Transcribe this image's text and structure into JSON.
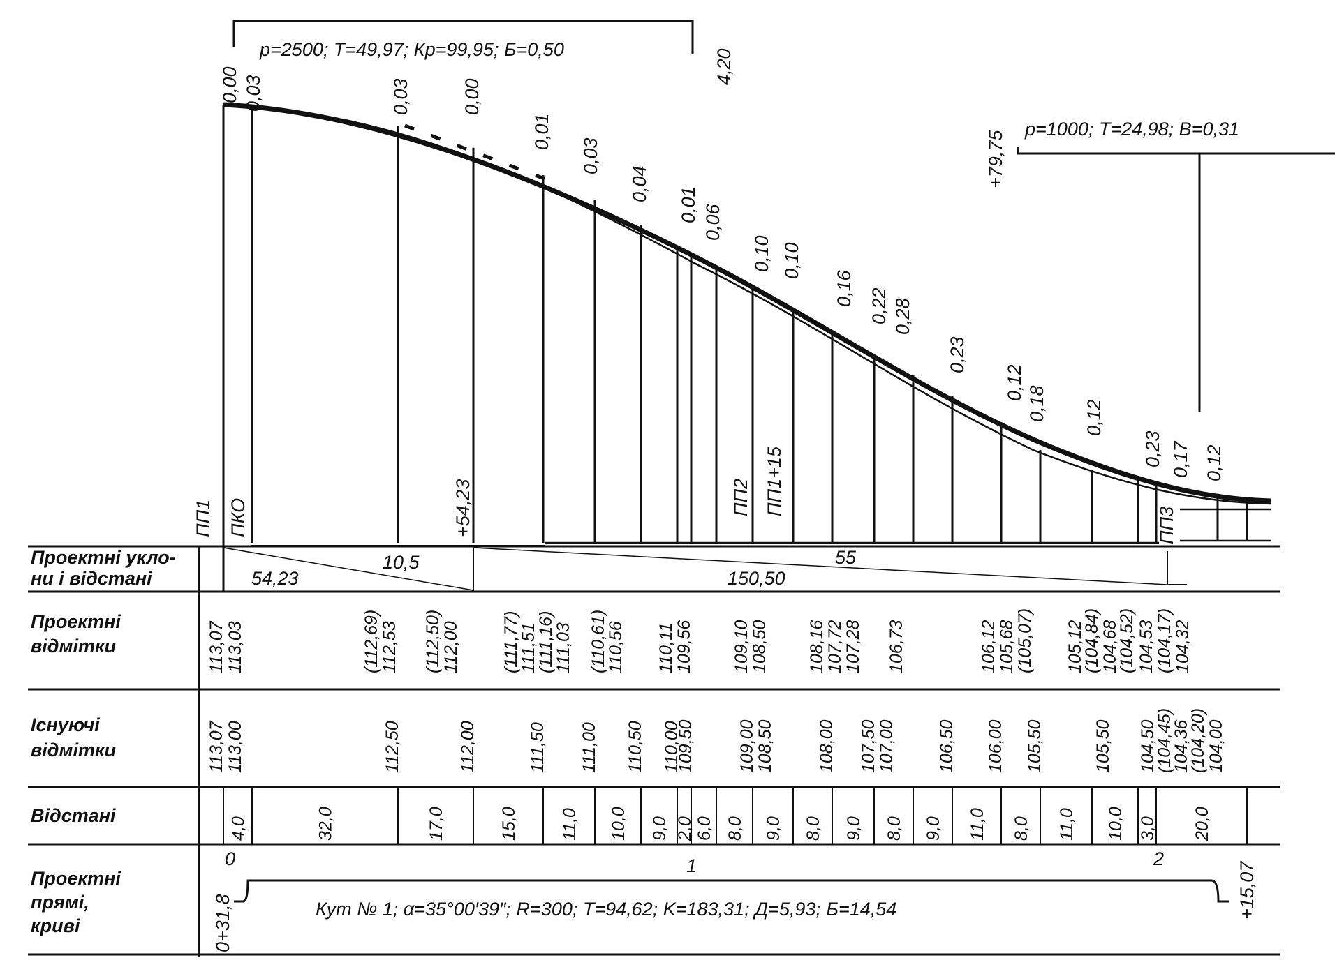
{
  "diagram": {
    "vertical_curve_1": {
      "label": "p=2500; T=49,97; Кр=99,95; Б=0,50",
      "end_mark": "4,20"
    },
    "vertical_curve_2": {
      "label": "p=1000; T=24,98; B=0,31",
      "mark": "+79,75"
    },
    "top_annotations": [
      "0,00",
      "0,03",
      "0,03",
      "0,00",
      "0,01",
      "0,03",
      "0,04",
      "0,01",
      "0,06",
      "0,10",
      "0,10",
      "0,16",
      "0,22",
      "0,28",
      "0,23",
      "0,12",
      "0,18",
      "0,12",
      "0,23",
      "0,17",
      "0,12"
    ],
    "point_labels": {
      "pp1": "ПП1",
      "pko": "ПКО",
      "plus_5423": "+54,23",
      "pp2": "ПП2",
      "pp1_15": "ПП1+15",
      "pp3": "ПП3"
    }
  },
  "rows": {
    "grades": {
      "header": [
        "Проектні укло-",
        "ни і відстані"
      ],
      "segments": [
        "54,23",
        "10,5",
        "150,50",
        "55"
      ]
    },
    "design_elev": {
      "header": [
        "Проектні",
        "відмітки"
      ],
      "values": [
        "113,07",
        "113,03",
        "(112,69)",
        "112,53",
        "(112,50)",
        "112,00",
        "(111,77)",
        "111,51",
        "(111,16)",
        "111,03",
        "(110,61)",
        "110,56",
        "110,11",
        "109,56",
        "109,10",
        "108,50",
        "108,16",
        "107,72",
        "107,28",
        "106,73",
        "106,12",
        "105,68",
        "(105,07)",
        "105,12",
        "(104,84)",
        "104,68",
        "(104,52)",
        "104,53",
        "(104,17)",
        "104,32"
      ]
    },
    "existing_elev": {
      "header": [
        "Існуючі",
        "відмітки"
      ],
      "values": [
        "113,07",
        "113,00",
        "112,50",
        "112,00",
        "111,50",
        "111,00",
        "110,50",
        "110,00",
        "109,50",
        "109,00",
        "108,50",
        "108,00",
        "107,50",
        "107,00",
        "106,50",
        "106,00",
        "105,50",
        "105,50",
        "104,50",
        "(104,45)",
        "104,36",
        "(104,20)",
        "104,00"
      ]
    },
    "distances": {
      "header": [
        "Відстані"
      ],
      "values": [
        "4,0",
        "32,0",
        "17,0",
        "15,0",
        "11,0",
        "10,0",
        "9,0",
        "2,0",
        "6,0",
        "8,0",
        "9,0",
        "8,0",
        "9,0",
        "8,0",
        "9,0",
        "11,0",
        "8,0",
        "11,0",
        "10,0",
        "3,0",
        "20,0"
      ],
      "pickets": [
        "0",
        "1",
        "2"
      ]
    },
    "plan": {
      "header": [
        "Проектні",
        "прямі,",
        "криві"
      ],
      "curve_label": "Кут № 1;  α=35°00′39″;  R=300;  T=94,62;  K=183,31;  Д=5,93;  Б=14,54",
      "start": "0+31,8",
      "end": "+15,07"
    }
  }
}
